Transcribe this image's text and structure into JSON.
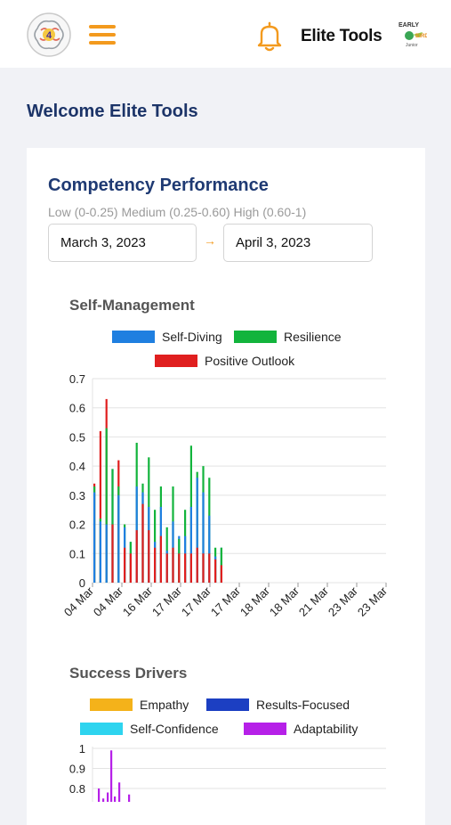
{
  "header": {
    "brand_name": "Elite Tools",
    "logo_icon": "brain-logo-icon",
    "menu_icon": "hamburger-menu-icon",
    "notification_icon": "bell-icon",
    "partner_logo_text": "EARLY BIRD",
    "accent_color": "#f39a1e"
  },
  "welcome_text": "Welcome Elite Tools",
  "competency": {
    "title": "Competency Performance",
    "levels": "Low (0-0.25) Medium (0.25-0.60) High (0.60-1)",
    "date_from": "March 3, 2023",
    "date_to": "April 3, 2023",
    "arrow_glyph": "→"
  },
  "chart_data": [
    {
      "type": "bar",
      "title": "Self-Management",
      "ylim": [
        0,
        0.7
      ],
      "yticks": [
        "0",
        "0.1",
        "0.2",
        "0.3",
        "0.4",
        "0.5",
        "0.6",
        "0.7"
      ],
      "x_tick_labels": [
        "04 Mar",
        "04 Mar",
        "16 Mar",
        "17 Mar",
        "17 Mar",
        "17 Mar",
        "18 Mar",
        "18 Mar",
        "21 Mar",
        "23 Mar",
        "23 Mar"
      ],
      "grid": true,
      "legend_position": "top",
      "series": [
        {
          "name": "Self-Diving",
          "color": "#1f7fe0",
          "values": [
            0.31,
            0.21,
            0.2,
            0.39,
            0.3,
            0.19,
            0.14,
            0.33,
            0.31,
            0.26,
            0.14,
            0.26,
            0.11,
            0.21,
            0.16,
            0.16,
            0.26,
            0.36,
            0.31,
            0.23,
            0.09,
            0.12
          ]
        },
        {
          "name": "Resilience",
          "color": "#12b43c",
          "values": [
            0.33,
            0.22,
            0.53,
            0.39,
            0.33,
            0.2,
            0.14,
            0.48,
            0.34,
            0.43,
            0.25,
            0.33,
            0.19,
            0.33,
            0.15,
            0.25,
            0.47,
            0.38,
            0.4,
            0.36,
            0.12,
            0.12
          ]
        },
        {
          "name": "Positive Outlook",
          "color": "#e01f1f",
          "values": [
            0.34,
            0.52,
            0.63,
            0.2,
            0.42,
            0.12,
            0.1,
            0.18,
            0.27,
            0.18,
            0.12,
            0.16,
            0.1,
            0.12,
            0.1,
            0.1,
            0.1,
            0.12,
            0.1,
            0.1,
            0.08,
            0.06
          ]
        }
      ]
    },
    {
      "type": "bar",
      "title": "Success Drivers",
      "ylim": [
        0,
        1
      ],
      "yticks": [
        "0.8",
        "0.9",
        "1"
      ],
      "grid": true,
      "legend_position": "top",
      "series": [
        {
          "name": "Empathy",
          "color": "#f4b21a",
          "values": []
        },
        {
          "name": "Results-Focused",
          "color": "#1c3fc2",
          "values": []
        },
        {
          "name": "Self-Confidence",
          "color": "#2ed4ef",
          "values": []
        },
        {
          "name": "Adaptability",
          "color": "#b620e8",
          "values": [
            0.8,
            0.75,
            0.78,
            0.99,
            0.76,
            0.83,
            0.72,
            0.77
          ]
        }
      ]
    }
  ]
}
